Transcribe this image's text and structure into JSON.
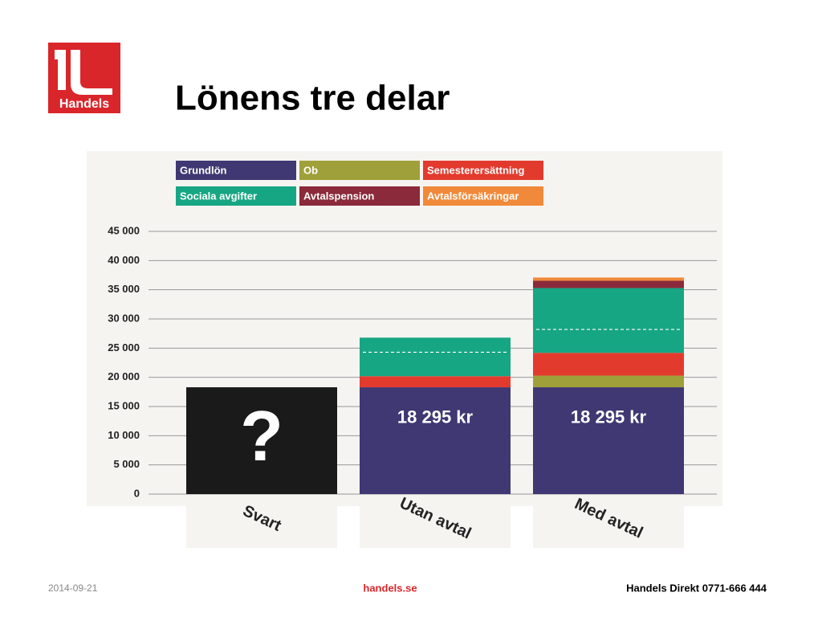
{
  "header": {
    "logo_text": "Handels",
    "title": "Lönens tre delar"
  },
  "chart_data": {
    "type": "stacked_bar",
    "categories": [
      "Svart",
      "Utan avtal",
      "Med avtal"
    ],
    "series": [
      {
        "name": "Grundlön",
        "color": "#3f3873",
        "point_colors": [
          "#1a1a1a",
          "#3f3873",
          "#3f3873"
        ],
        "values": [
          18295,
          18295,
          18295
        ],
        "value_labels": [
          null,
          "18 295 kr",
          "18 295 kr"
        ]
      },
      {
        "name": "Ob",
        "color": "#a0a03a",
        "values": [
          0,
          0,
          2000
        ]
      },
      {
        "name": "Semesterersättning",
        "color": "#e23b2e",
        "values": [
          0,
          1900,
          3900
        ]
      },
      {
        "name": "Sociala avgifter",
        "color": "#17a683",
        "values": [
          0,
          6600,
          11100
        ]
      },
      {
        "name": "Avtalspension",
        "color": "#8b2a3a",
        "values": [
          0,
          0,
          1250
        ]
      },
      {
        "name": "Avtalsförsäkringar",
        "color": "#f08a3a",
        "values": [
          0,
          0,
          550
        ]
      }
    ],
    "dashed_line_values": [
      null,
      24300,
      28200
    ],
    "annotations": [
      {
        "text": "?",
        "category": 0
      }
    ],
    "ylim": [
      0,
      45000
    ],
    "yticks": [
      0,
      {
        "value": 5000,
        "label": "5 000"
      },
      {
        "value": 10000,
        "label": "10 000"
      },
      {
        "value": 15000,
        "label": "15 000"
      },
      {
        "value": 20000,
        "label": "20 000"
      },
      {
        "value": 25000,
        "label": "25 000"
      },
      {
        "value": 30000,
        "label": "30 000"
      },
      {
        "value": 35000,
        "label": "35 000"
      },
      {
        "value": 40000,
        "label": "40 000"
      },
      {
        "value": 45000,
        "label": "45 000"
      }
    ],
    "grid": true
  },
  "footer": {
    "date": "2014-09-21",
    "site": "handels.se",
    "contact": "Handels Direkt 0771-666 444"
  }
}
